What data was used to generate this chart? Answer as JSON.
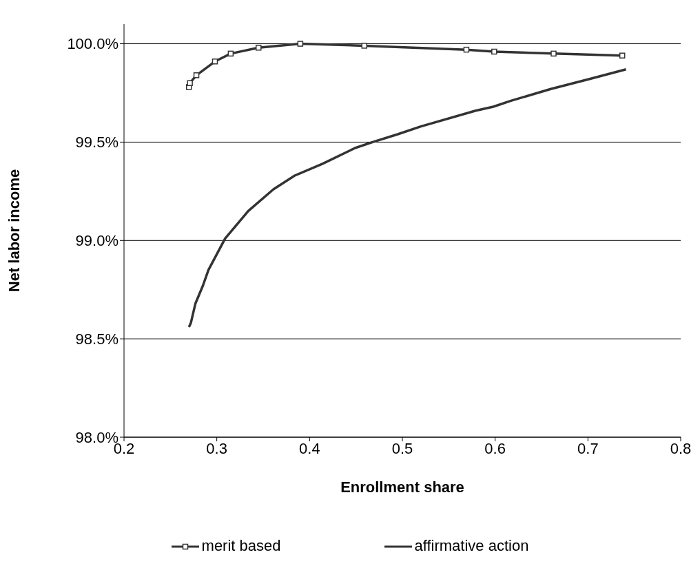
{
  "chart_data": {
    "type": "line",
    "xlabel": "Enrollment share",
    "ylabel": "Net labor income",
    "xlim": [
      0.2,
      0.8
    ],
    "xticks": [
      0.2,
      0.3,
      0.4,
      0.5,
      0.6,
      0.7,
      0.8
    ],
    "ylim": [
      98,
      100.1
    ],
    "yticks": [
      {
        "value": 98,
        "label": "98.0%"
      },
      {
        "value": 98.5,
        "label": "98.5%"
      },
      {
        "value": 99,
        "label": "99.0%"
      },
      {
        "value": 99.5,
        "label": "99.5%"
      },
      {
        "value": 100,
        "label": "100.0%"
      }
    ],
    "grid": "y",
    "legend": "bottom",
    "series": [
      {
        "name": "merit based",
        "color": "#333333",
        "marker": "square",
        "x": [
          0.27,
          0.271,
          0.278,
          0.298,
          0.315,
          0.345,
          0.39,
          0.459,
          0.569,
          0.599,
          0.663,
          0.737
        ],
        "values": [
          99.78,
          99.8,
          99.84,
          99.91,
          99.95,
          99.98,
          100.0,
          99.99,
          99.97,
          99.96,
          99.95,
          99.94
        ]
      },
      {
        "name": "affirmative action",
        "color": "#333333",
        "marker": "none",
        "x": [
          0.27,
          0.272,
          0.277,
          0.285,
          0.291,
          0.309,
          0.334,
          0.361,
          0.384,
          0.414,
          0.449,
          0.468,
          0.495,
          0.52,
          0.579,
          0.598,
          0.617,
          0.66,
          0.701,
          0.741
        ],
        "values": [
          98.56,
          98.58,
          98.68,
          98.77,
          98.85,
          99.01,
          99.15,
          99.26,
          99.33,
          99.39,
          99.47,
          99.5,
          99.54,
          99.58,
          99.66,
          99.68,
          99.71,
          99.77,
          99.82,
          99.87
        ]
      }
    ]
  }
}
